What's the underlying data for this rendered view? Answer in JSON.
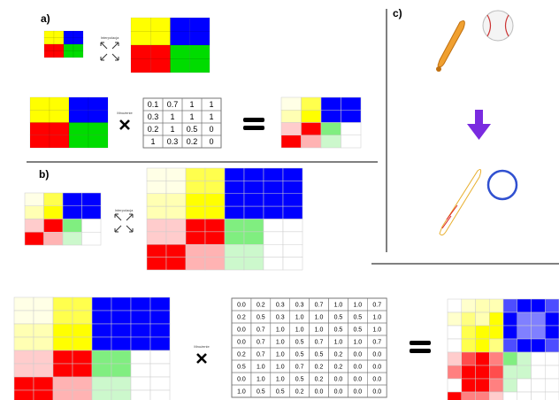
{
  "panel_a": {
    "label": "a)",
    "interpolation_label": "Interpolacja",
    "multiplication_label": "Mnożenie",
    "matrix": [
      [
        "0.1",
        "0.7",
        "1",
        "1"
      ],
      [
        "0.3",
        "1",
        "1",
        "1"
      ],
      [
        "0.2",
        "1",
        "0.5",
        "0"
      ],
      [
        "1",
        "0.3",
        "0.2",
        "0"
      ]
    ]
  },
  "panel_b": {
    "label": "b)",
    "interpolation_label": "Interpolacja"
  },
  "panel_c": {
    "label": "c)"
  },
  "bottom": {
    "multiplication_label": "Mnożenie",
    "matrix": [
      [
        "0.0",
        "0.2",
        "0.3",
        "0.3",
        "0.7",
        "1.0",
        "1.0",
        "0.7"
      ],
      [
        "0.2",
        "0.5",
        "0.3",
        "1.0",
        "1.0",
        "0.5",
        "0.5",
        "1.0"
      ],
      [
        "0.0",
        "0.7",
        "1.0",
        "1.0",
        "1.0",
        "0.5",
        "0.5",
        "1.0"
      ],
      [
        "0.0",
        "0.7",
        "1.0",
        "0.5",
        "0.7",
        "1.0",
        "1.0",
        "0.7"
      ],
      [
        "0.2",
        "0.7",
        "1.0",
        "0.5",
        "0.5",
        "0.2",
        "0.0",
        "0.0"
      ],
      [
        "0.5",
        "1.0",
        "1.0",
        "0.7",
        "0.2",
        "0.2",
        "0.0",
        "0.0"
      ],
      [
        "0.0",
        "1.0",
        "1.0",
        "0.5",
        "0.2",
        "0.0",
        "0.0",
        "0.0"
      ],
      [
        "1.0",
        "0.5",
        "0.5",
        "0.2",
        "0.0",
        "0.0",
        "0.0",
        "0.0"
      ]
    ]
  }
}
